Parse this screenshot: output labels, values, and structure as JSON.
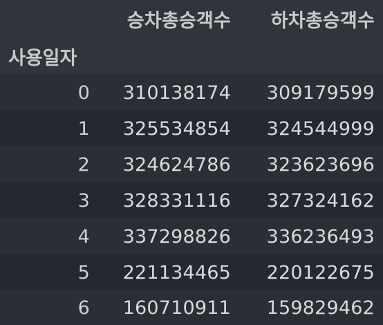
{
  "table": {
    "columns": [
      "승차총승객수",
      "하차총승객수"
    ],
    "index_name": "사용일자",
    "rows": [
      {
        "index": "0",
        "board": "310138174",
        "alight": "309179599"
      },
      {
        "index": "1",
        "board": "325534854",
        "alight": "324544999"
      },
      {
        "index": "2",
        "board": "324624786",
        "alight": "323623696"
      },
      {
        "index": "3",
        "board": "328331116",
        "alight": "327324162"
      },
      {
        "index": "4",
        "board": "337298826",
        "alight": "336236493"
      },
      {
        "index": "5",
        "board": "221134465",
        "alight": "220122675"
      },
      {
        "index": "6",
        "board": "160710911",
        "alight": "159829462"
      }
    ]
  },
  "colors": {
    "background": "#252830",
    "header_background": "#31343b",
    "stripe": "#2b2e35",
    "text": "#d9dadd"
  }
}
